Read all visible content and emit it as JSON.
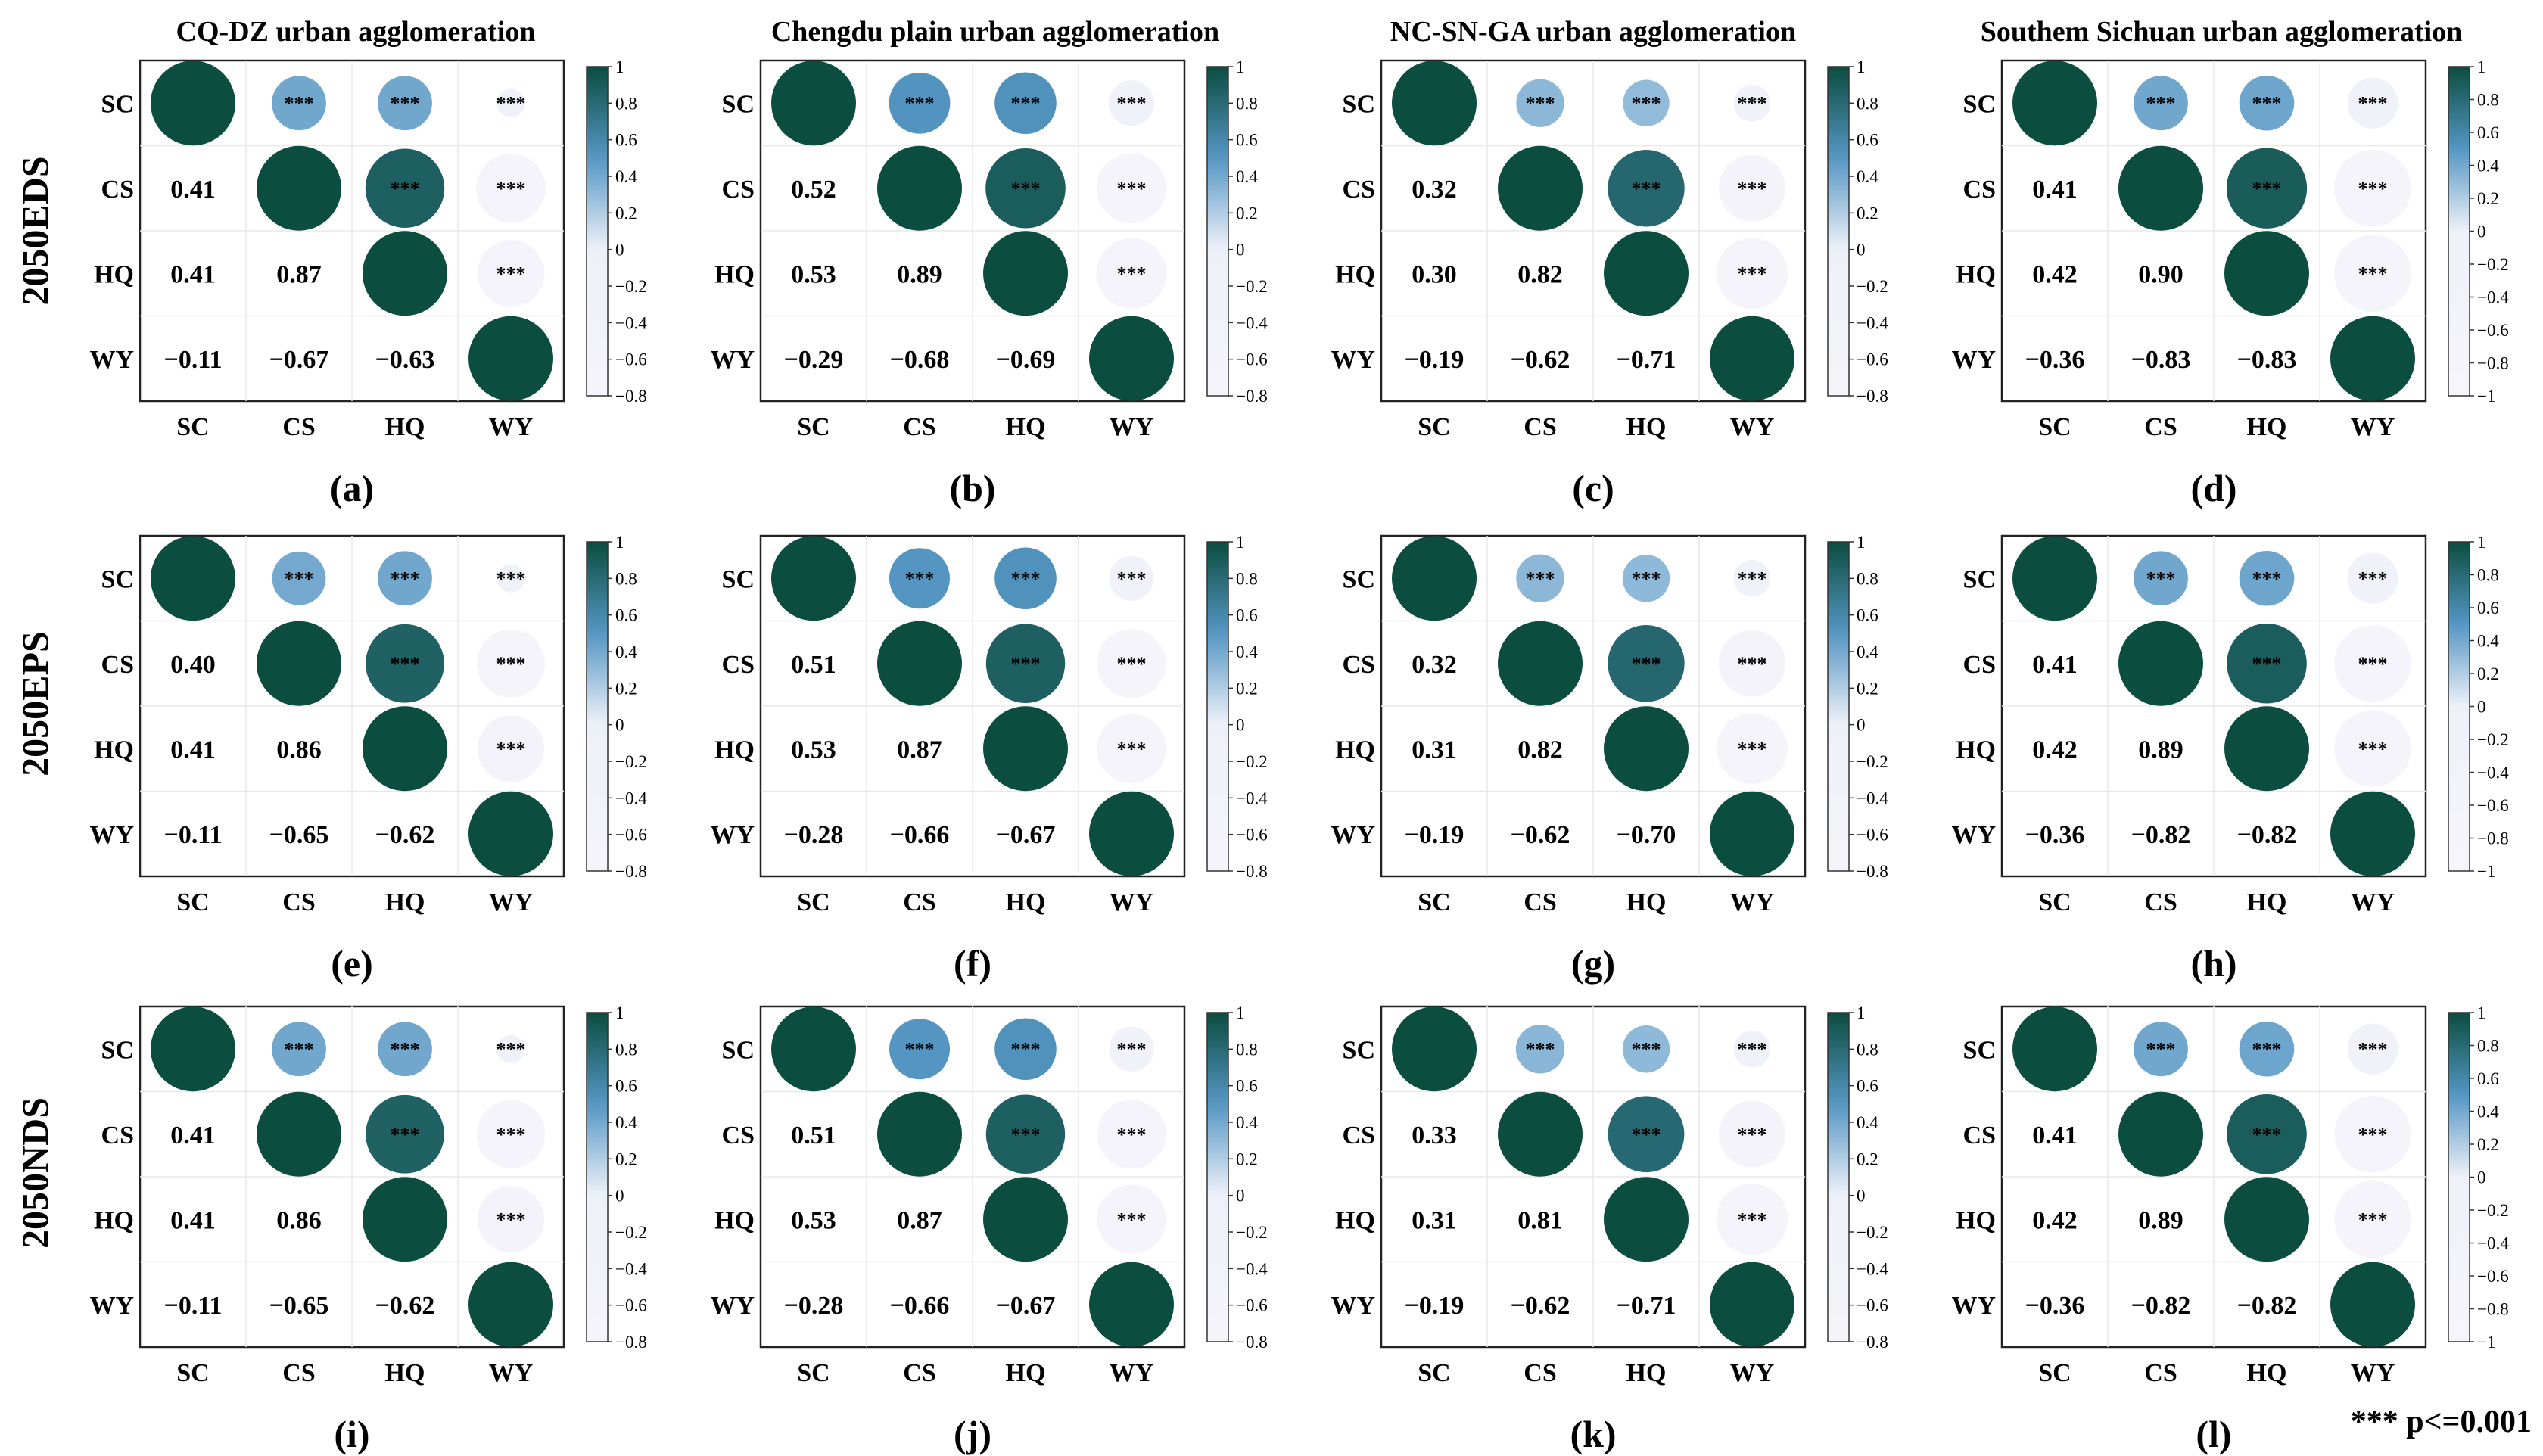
{
  "variables": [
    "SC",
    "CS",
    "HQ",
    "WY"
  ],
  "column_titles": [
    "CQ-DZ urban agglomeration",
    "Chengdu plain urban agglomeration",
    "NC-SN-GA urban agglomeration",
    "Southem Sichuan urban agglomeration"
  ],
  "row_labels": [
    "2050EDS",
    "2050EPS",
    "2050NDS"
  ],
  "significance_mark": "***",
  "significance_note": "*** p<=0.001",
  "colors": {
    "high": "#0b4d3f",
    "mid": "#5596c4",
    "zero": "#eef1f8",
    "low": "#f7f5fb"
  },
  "chart_data": [
    {
      "type": "heatmap",
      "panel": "(a)",
      "row": 0,
      "col": 0,
      "legend_ticks": [
        "1",
        "0.8",
        "0.6",
        "0.4",
        "0.2",
        "0",
        "−0.2",
        "−0.4",
        "−0.6",
        "−0.8"
      ],
      "legend_range": [
        -0.8,
        1
      ],
      "values": [
        [
          1,
          0.41,
          0.41,
          -0.11
        ],
        [
          0.41,
          1,
          0.87,
          -0.67
        ],
        [
          0.41,
          0.87,
          1,
          -0.63
        ],
        [
          -0.11,
          -0.67,
          -0.63,
          1
        ]
      ],
      "labels": [
        [
          "",
          "",
          "",
          ""
        ],
        [
          "0.41",
          "",
          "",
          ""
        ],
        [
          "0.41",
          "0.87",
          "",
          ""
        ],
        [
          "−0.11",
          "−0.67",
          "−0.63",
          ""
        ]
      ]
    },
    {
      "type": "heatmap",
      "panel": "(b)",
      "row": 0,
      "col": 1,
      "legend_ticks": [
        "1",
        "0.8",
        "0.6",
        "0.4",
        "0.2",
        "0",
        "−0.2",
        "−0.4",
        "−0.6",
        "−0.8"
      ],
      "legend_range": [
        -0.8,
        1
      ],
      "values": [
        [
          1,
          0.52,
          0.53,
          -0.29
        ],
        [
          0.52,
          1,
          0.89,
          -0.68
        ],
        [
          0.53,
          0.89,
          1,
          -0.69
        ],
        [
          -0.29,
          -0.68,
          -0.69,
          1
        ]
      ],
      "labels": [
        [
          "",
          "",
          "",
          ""
        ],
        [
          "0.52",
          "",
          "",
          ""
        ],
        [
          "0.53",
          "0.89",
          "",
          ""
        ],
        [
          "−0.29",
          "−0.68",
          "−0.69",
          ""
        ]
      ]
    },
    {
      "type": "heatmap",
      "panel": "(c)",
      "row": 0,
      "col": 2,
      "legend_ticks": [
        "1",
        "0.8",
        "0.6",
        "0.4",
        "0.2",
        "0",
        "−0.2",
        "−0.4",
        "−0.6",
        "−0.8"
      ],
      "legend_range": [
        -0.8,
        1
      ],
      "values": [
        [
          1,
          0.32,
          0.3,
          -0.19
        ],
        [
          0.32,
          1,
          0.82,
          -0.62
        ],
        [
          0.3,
          0.82,
          1,
          -0.71
        ],
        [
          -0.19,
          -0.62,
          -0.71,
          1
        ]
      ],
      "labels": [
        [
          "",
          "",
          "",
          ""
        ],
        [
          "0.32",
          "",
          "",
          ""
        ],
        [
          "0.30",
          "0.82",
          "",
          ""
        ],
        [
          "−0.19",
          "−0.62",
          "−0.71",
          ""
        ]
      ]
    },
    {
      "type": "heatmap",
      "panel": "(d)",
      "row": 0,
      "col": 3,
      "legend_ticks": [
        "1",
        "0.8",
        "0.6",
        "0.4",
        "0.2",
        "0",
        "−0.2",
        "−0.4",
        "−0.6",
        "−0.8",
        "−1"
      ],
      "legend_range": [
        -1,
        1
      ],
      "values": [
        [
          1,
          0.41,
          0.42,
          -0.36
        ],
        [
          0.41,
          1,
          0.9,
          -0.83
        ],
        [
          0.42,
          0.9,
          1,
          -0.83
        ],
        [
          -0.36,
          -0.83,
          -0.83,
          1
        ]
      ],
      "labels": [
        [
          "",
          "",
          "",
          ""
        ],
        [
          "0.41",
          "",
          "",
          ""
        ],
        [
          "0.42",
          "0.90",
          "",
          ""
        ],
        [
          "−0.36",
          "−0.83",
          "−0.83",
          ""
        ]
      ]
    },
    {
      "type": "heatmap",
      "panel": "(e)",
      "row": 1,
      "col": 0,
      "legend_ticks": [
        "1",
        "0.8",
        "0.6",
        "0.4",
        "0.2",
        "0",
        "−0.2",
        "−0.4",
        "−0.6",
        "−0.8"
      ],
      "legend_range": [
        -0.8,
        1
      ],
      "values": [
        [
          1,
          0.4,
          0.41,
          -0.11
        ],
        [
          0.4,
          1,
          0.86,
          -0.65
        ],
        [
          0.41,
          0.86,
          1,
          -0.62
        ],
        [
          -0.11,
          -0.65,
          -0.62,
          1
        ]
      ],
      "labels": [
        [
          "",
          "",
          "",
          ""
        ],
        [
          "0.40",
          "",
          "",
          ""
        ],
        [
          "0.41",
          "0.86",
          "",
          ""
        ],
        [
          "−0.11",
          "−0.65",
          "−0.62",
          ""
        ]
      ]
    },
    {
      "type": "heatmap",
      "panel": "(f)",
      "row": 1,
      "col": 1,
      "legend_ticks": [
        "1",
        "0.8",
        "0.6",
        "0.4",
        "0.2",
        "0",
        "−0.2",
        "−0.4",
        "−0.6",
        "−0.8"
      ],
      "legend_range": [
        -0.8,
        1
      ],
      "values": [
        [
          1,
          0.51,
          0.53,
          -0.28
        ],
        [
          0.51,
          1,
          0.87,
          -0.66
        ],
        [
          0.53,
          0.87,
          1,
          -0.67
        ],
        [
          -0.28,
          -0.66,
          -0.67,
          1
        ]
      ],
      "labels": [
        [
          "",
          "",
          "",
          ""
        ],
        [
          "0.51",
          "",
          "",
          ""
        ],
        [
          "0.53",
          "0.87",
          "",
          ""
        ],
        [
          "−0.28",
          "−0.66",
          "−0.67",
          ""
        ]
      ]
    },
    {
      "type": "heatmap",
      "panel": "(g)",
      "row": 1,
      "col": 2,
      "legend_ticks": [
        "1",
        "0.8",
        "0.6",
        "0.4",
        "0.2",
        "0",
        "−0.2",
        "−0.4",
        "−0.6",
        "−0.8"
      ],
      "legend_range": [
        -0.8,
        1
      ],
      "values": [
        [
          1,
          0.32,
          0.31,
          -0.19
        ],
        [
          0.32,
          1,
          0.82,
          -0.62
        ],
        [
          0.31,
          0.82,
          1,
          -0.7
        ],
        [
          -0.19,
          -0.62,
          -0.7,
          1
        ]
      ],
      "labels": [
        [
          "",
          "",
          "",
          ""
        ],
        [
          "0.32",
          "",
          "",
          ""
        ],
        [
          "0.31",
          "0.82",
          "",
          ""
        ],
        [
          "−0.19",
          "−0.62",
          "−0.70",
          ""
        ]
      ]
    },
    {
      "type": "heatmap",
      "panel": "(h)",
      "row": 1,
      "col": 3,
      "legend_ticks": [
        "1",
        "0.8",
        "0.6",
        "0.4",
        "0.2",
        "0",
        "−0.2",
        "−0.4",
        "−0.6",
        "−0.8",
        "−1"
      ],
      "legend_range": [
        -1,
        1
      ],
      "values": [
        [
          1,
          0.41,
          0.42,
          -0.36
        ],
        [
          0.41,
          1,
          0.89,
          -0.82
        ],
        [
          0.42,
          0.89,
          1,
          -0.82
        ],
        [
          -0.36,
          -0.82,
          -0.82,
          1
        ]
      ],
      "labels": [
        [
          "",
          "",
          "",
          ""
        ],
        [
          "0.41",
          "",
          "",
          ""
        ],
        [
          "0.42",
          "0.89",
          "",
          ""
        ],
        [
          "−0.36",
          "−0.82",
          "−0.82",
          ""
        ]
      ]
    },
    {
      "type": "heatmap",
      "panel": "(i)",
      "row": 2,
      "col": 0,
      "legend_ticks": [
        "1",
        "0.8",
        "0.6",
        "0.4",
        "0.2",
        "0",
        "−0.2",
        "−0.4",
        "−0.6",
        "−0.8"
      ],
      "legend_range": [
        -0.8,
        1
      ],
      "values": [
        [
          1,
          0.41,
          0.41,
          -0.11
        ],
        [
          0.41,
          1,
          0.86,
          -0.65
        ],
        [
          0.41,
          0.86,
          1,
          -0.62
        ],
        [
          -0.11,
          -0.65,
          -0.62,
          1
        ]
      ],
      "labels": [
        [
          "",
          "",
          "",
          ""
        ],
        [
          "0.41",
          "",
          "",
          ""
        ],
        [
          "0.41",
          "0.86",
          "",
          ""
        ],
        [
          "−0.11",
          "−0.65",
          "−0.62",
          ""
        ]
      ]
    },
    {
      "type": "heatmap",
      "panel": "(j)",
      "row": 2,
      "col": 1,
      "legend_ticks": [
        "1",
        "0.8",
        "0.6",
        "0.4",
        "0.2",
        "0",
        "−0.2",
        "−0.4",
        "−0.6",
        "−0.8"
      ],
      "legend_range": [
        -0.8,
        1
      ],
      "values": [
        [
          1,
          0.51,
          0.53,
          -0.28
        ],
        [
          0.51,
          1,
          0.87,
          -0.66
        ],
        [
          0.53,
          0.87,
          1,
          -0.67
        ],
        [
          -0.28,
          -0.66,
          -0.67,
          1
        ]
      ],
      "labels": [
        [
          "",
          "",
          "",
          ""
        ],
        [
          "0.51",
          "",
          "",
          ""
        ],
        [
          "0.53",
          "0.87",
          "",
          ""
        ],
        [
          "−0.28",
          "−0.66",
          "−0.67",
          ""
        ]
      ]
    },
    {
      "type": "heatmap",
      "panel": "(k)",
      "row": 2,
      "col": 2,
      "legend_ticks": [
        "1",
        "0.8",
        "0.6",
        "0.4",
        "0.2",
        "0",
        "−0.2",
        "−0.4",
        "−0.6",
        "−0.8"
      ],
      "legend_range": [
        -0.8,
        1
      ],
      "values": [
        [
          1,
          0.33,
          0.31,
          -0.19
        ],
        [
          0.33,
          1,
          0.81,
          -0.62
        ],
        [
          0.31,
          0.81,
          1,
          -0.71
        ],
        [
          -0.19,
          -0.62,
          -0.71,
          1
        ]
      ],
      "labels": [
        [
          "",
          "",
          "",
          ""
        ],
        [
          "0.33",
          "",
          "",
          ""
        ],
        [
          "0.31",
          "0.81",
          "",
          ""
        ],
        [
          "−0.19",
          "−0.62",
          "−0.71",
          ""
        ]
      ]
    },
    {
      "type": "heatmap",
      "panel": "(l)",
      "row": 2,
      "col": 3,
      "legend_ticks": [
        "1",
        "0.8",
        "0.6",
        "0.4",
        "0.2",
        "0",
        "−0.2",
        "−0.4",
        "−0.6",
        "−0.8",
        "−1"
      ],
      "legend_range": [
        -1,
        1
      ],
      "values": [
        [
          1,
          0.41,
          0.42,
          -0.36
        ],
        [
          0.41,
          1,
          0.89,
          -0.82
        ],
        [
          0.42,
          0.89,
          1,
          -0.82
        ],
        [
          -0.36,
          -0.82,
          -0.82,
          1
        ]
      ],
      "labels": [
        [
          "",
          "",
          "",
          ""
        ],
        [
          "0.41",
          "",
          "",
          ""
        ],
        [
          "0.42",
          "0.89",
          "",
          ""
        ],
        [
          "−0.36",
          "−0.82",
          "−0.82",
          ""
        ]
      ]
    }
  ]
}
